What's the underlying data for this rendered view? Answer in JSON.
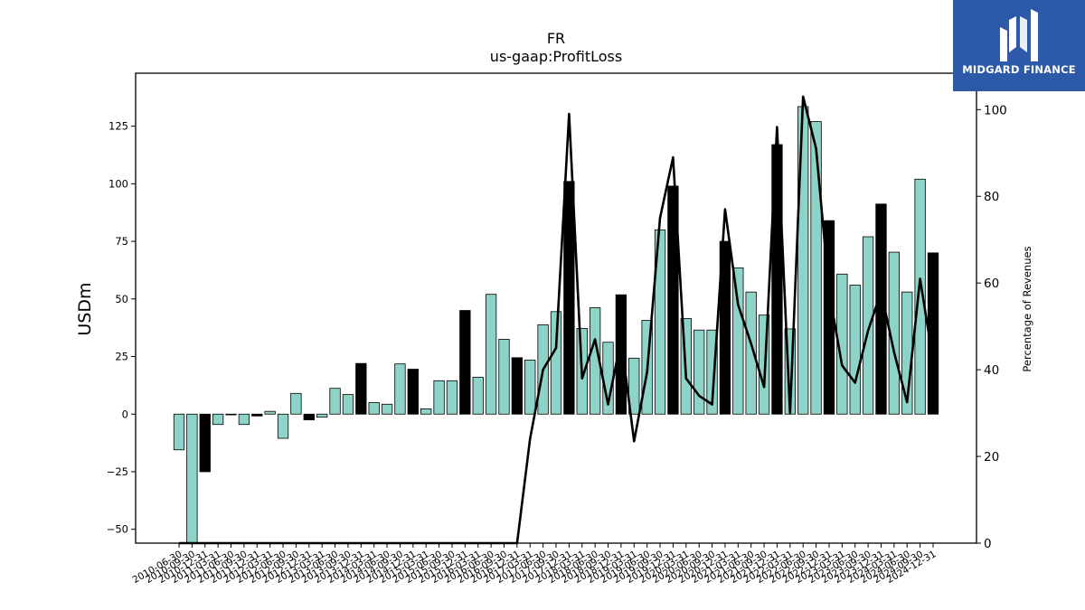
{
  "chart_data": {
    "type": "bar",
    "title": "FR",
    "subtitle": "us-gaap:ProfitLoss",
    "ylabel": "USDm",
    "y2label": "Percentage of Revenues",
    "ylim": [
      -56,
      148
    ],
    "y2lim": [
      0,
      108.4
    ],
    "yticks": [
      -50,
      -25,
      0,
      25,
      50,
      75,
      100,
      125
    ],
    "y2ticks": [
      0,
      20,
      40,
      60,
      80,
      100
    ],
    "categories": [
      "2010-06-30",
      "2010-09-30",
      "2010-12-31",
      "2011-03-31",
      "2011-06-30",
      "2011-09-30",
      "2011-12-31",
      "2012-03-31",
      "2012-06-30",
      "2012-09-30",
      "2012-12-31",
      "2013-03-31",
      "2013-06-30",
      "2013-09-30",
      "2013-12-31",
      "2014-03-31",
      "2014-06-30",
      "2014-09-30",
      "2014-12-31",
      "2015-03-31",
      "2015-06-30",
      "2015-09-30",
      "2015-12-31",
      "2016-03-31",
      "2016-06-30",
      "2016-09-30",
      "2016-12-31",
      "2017-03-31",
      "2017-06-30",
      "2017-09-30",
      "2017-12-31",
      "2018-03-31",
      "2018-06-30",
      "2018-09-30",
      "2018-12-31",
      "2019-03-31",
      "2019-06-30",
      "2019-09-30",
      "2019-12-31",
      "2020-03-31",
      "2020-06-30",
      "2020-09-30",
      "2020-12-31",
      "2021-03-31",
      "2021-06-30",
      "2021-09-30",
      "2021-12-31",
      "2022-03-31",
      "2022-06-30",
      "2022-09-30",
      "2022-12-31",
      "2023-03-31",
      "2023-06-30",
      "2023-09-30",
      "2023-12-31",
      "2024-03-31",
      "2024-06-30",
      "2024-09-30",
      "2024-12-31"
    ],
    "series": [
      {
        "kind": "bar",
        "values": [
          -15.5,
          -56,
          -25,
          -4.5,
          -0.3,
          -4.5,
          -0.8,
          1.2,
          -10.5,
          9,
          -2.5,
          -1.3,
          11.2,
          8.5,
          22,
          5,
          4.3,
          21.8,
          19.5,
          2.3,
          14.5,
          14.5,
          45,
          16,
          52,
          32.5,
          24.5,
          23.5,
          38.8,
          44.5,
          101,
          37.2,
          46.2,
          31.2,
          51.8,
          24.3,
          40.7,
          80,
          99,
          41.5,
          36.5,
          36.5,
          75,
          63.5,
          53,
          43,
          117,
          37,
          133.5,
          127,
          84,
          60.8,
          56,
          77,
          91.2,
          70.3,
          53,
          102,
          70
        ],
        "quarter_colors": {
          "Q1_Q2_Q3": "#8dd3c7",
          "Q4": "#000000"
        }
      },
      {
        "kind": "line",
        "axis": "right",
        "color": "#000000",
        "values": [
          0,
          0,
          0,
          0,
          0,
          0,
          0,
          0,
          0,
          0,
          0,
          0,
          0,
          0,
          0,
          0,
          0,
          0,
          0,
          0,
          0,
          0,
          0,
          0,
          0,
          0,
          0,
          24,
          40,
          45,
          99,
          38,
          47,
          32,
          47,
          23.5,
          39.5,
          75,
          89,
          38,
          34,
          32,
          77,
          55,
          46,
          36,
          96,
          30,
          103,
          91,
          58,
          41,
          37,
          49,
          58,
          44,
          32.5,
          61,
          42
        ]
      }
    ]
  },
  "logo": {
    "text": "MIDGARD FINANCE",
    "color": "#2d5aa8"
  }
}
